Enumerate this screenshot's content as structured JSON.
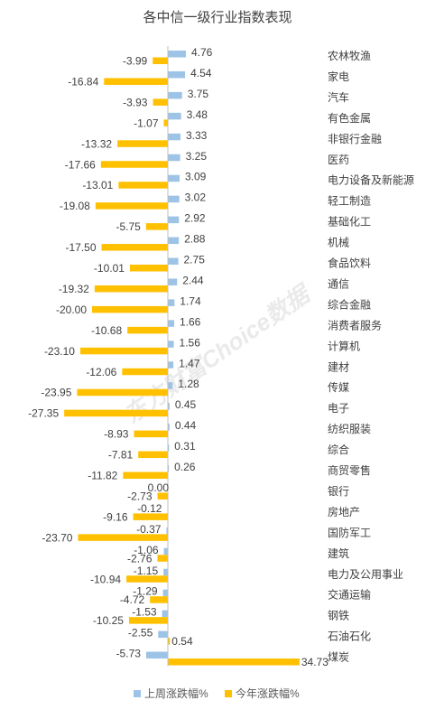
{
  "watermark": "东方财富Choice数据",
  "colors": {
    "weekly": "#9dc3e6",
    "ytd": "#ffc000",
    "axis": "#bfbfbf",
    "text": "#404040"
  },
  "chart_data": {
    "type": "bar",
    "orientation": "horizontal",
    "title": "各中信一级行业指数表现",
    "categories": [
      "农林牧渔",
      "家电",
      "汽车",
      "有色金属",
      "非银行金融",
      "医药",
      "电力设备及新能源",
      "轻工制造",
      "基础化工",
      "机械",
      "食品饮料",
      "通信",
      "综合金融",
      "消费者服务",
      "计算机",
      "建材",
      "传媒",
      "电子",
      "纺织服装",
      "综合",
      "商贸零售",
      "银行",
      "房地产",
      "国防军工",
      "建筑",
      "电力及公用事业",
      "交通运输",
      "钢铁",
      "石油石化",
      "煤炭"
    ],
    "series": [
      {
        "name": "上周涨跌幅%",
        "color": "#9dc3e6",
        "values": [
          4.76,
          4.54,
          3.75,
          3.48,
          3.33,
          3.25,
          3.09,
          3.02,
          2.92,
          2.88,
          2.75,
          2.44,
          1.74,
          1.66,
          1.56,
          1.47,
          1.28,
          0.45,
          0.44,
          0.31,
          0.26,
          0.0,
          -0.12,
          -0.37,
          -1.06,
          -1.15,
          -1.29,
          -1.53,
          -2.55,
          -5.73
        ],
        "labels": [
          "4.76",
          "4.54",
          "3.75",
          "3.48",
          "3.33",
          "3.25",
          "3.09",
          "3.02",
          "2.92",
          "2.88",
          "2.75",
          "2.44",
          "1.74",
          "1.66",
          "1.56",
          "1.47",
          "1.28",
          "0.45",
          "0.44",
          "0.31",
          "0.26",
          "0.00",
          "-0.12",
          "-0.37",
          "-1.06",
          "-1.15",
          "-1.29",
          "-1.53",
          "-2.55",
          "-5.73"
        ]
      },
      {
        "name": "今年涨跌幅%",
        "color": "#ffc000",
        "values": [
          -3.99,
          -16.84,
          -3.93,
          -1.07,
          -13.32,
          -17.66,
          -13.01,
          -19.08,
          -5.75,
          -17.5,
          -10.01,
          -19.32,
          -20.0,
          -10.68,
          -23.1,
          -12.06,
          -23.95,
          -27.35,
          -8.93,
          -7.81,
          -11.82,
          -2.73,
          -9.16,
          -23.7,
          -2.76,
          -10.94,
          -4.72,
          -10.25,
          0.54,
          34.73
        ],
        "labels": [
          "-3.99",
          "-16.84",
          "-3.93",
          "-1.07",
          "-13.32",
          "-17.66",
          "-13.01",
          "-19.08",
          "-5.75",
          "-17.50",
          "-10.01",
          "-19.32",
          "-20.00",
          "-10.68",
          "-23.10",
          "-12.06",
          "-23.95",
          "-27.35",
          "-8.93",
          "-7.81",
          "-11.82",
          "-2.73",
          "-9.16",
          "-23.70",
          "-2.76",
          "-10.94",
          "-4.72",
          "-10.25",
          "0.54",
          "34.73"
        ]
      }
    ],
    "legend": {
      "position": "bottom",
      "items": [
        "上周涨跌幅%",
        "今年涨跌幅%"
      ]
    },
    "grid": false
  }
}
